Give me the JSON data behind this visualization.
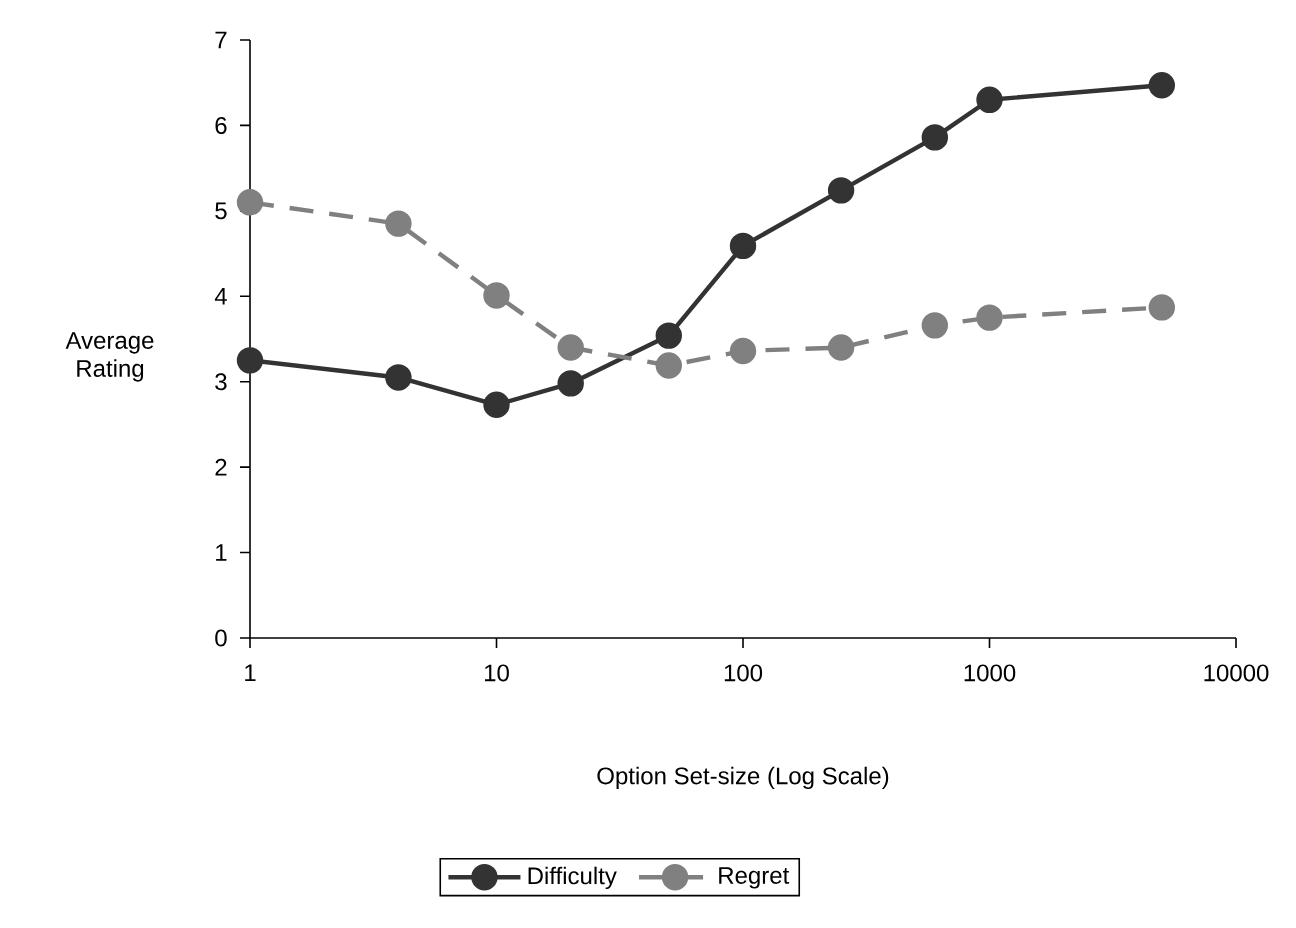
{
  "chart_data": {
    "type": "line",
    "xlabel": "Option Set-size (Log Scale)",
    "ylabel": "Average Rating",
    "x": [
      1,
      4,
      10,
      20,
      50,
      100,
      250,
      600,
      1000,
      5000
    ],
    "series": [
      {
        "name": "Difficulty",
        "color": "#333333",
        "line_style": "solid",
        "values": [
          3.25,
          3.05,
          2.73,
          2.98,
          3.54,
          4.59,
          5.24,
          5.86,
          6.3,
          6.47
        ]
      },
      {
        "name": "Regret",
        "color": "#808080",
        "line_style": "dashed",
        "values": [
          5.1,
          4.85,
          4.01,
          3.4,
          3.19,
          3.36,
          3.4,
          3.66,
          3.75,
          3.87
        ]
      }
    ],
    "log": "x",
    "xlim": [
      1,
      10000
    ],
    "xticks": [
      1,
      10,
      100,
      1000,
      10000
    ],
    "ylim": [
      0,
      7
    ],
    "yticks": [
      0,
      1,
      2,
      3,
      4,
      5,
      6,
      7
    ],
    "marker": "circle",
    "grid": false,
    "legend": "bottom"
  }
}
